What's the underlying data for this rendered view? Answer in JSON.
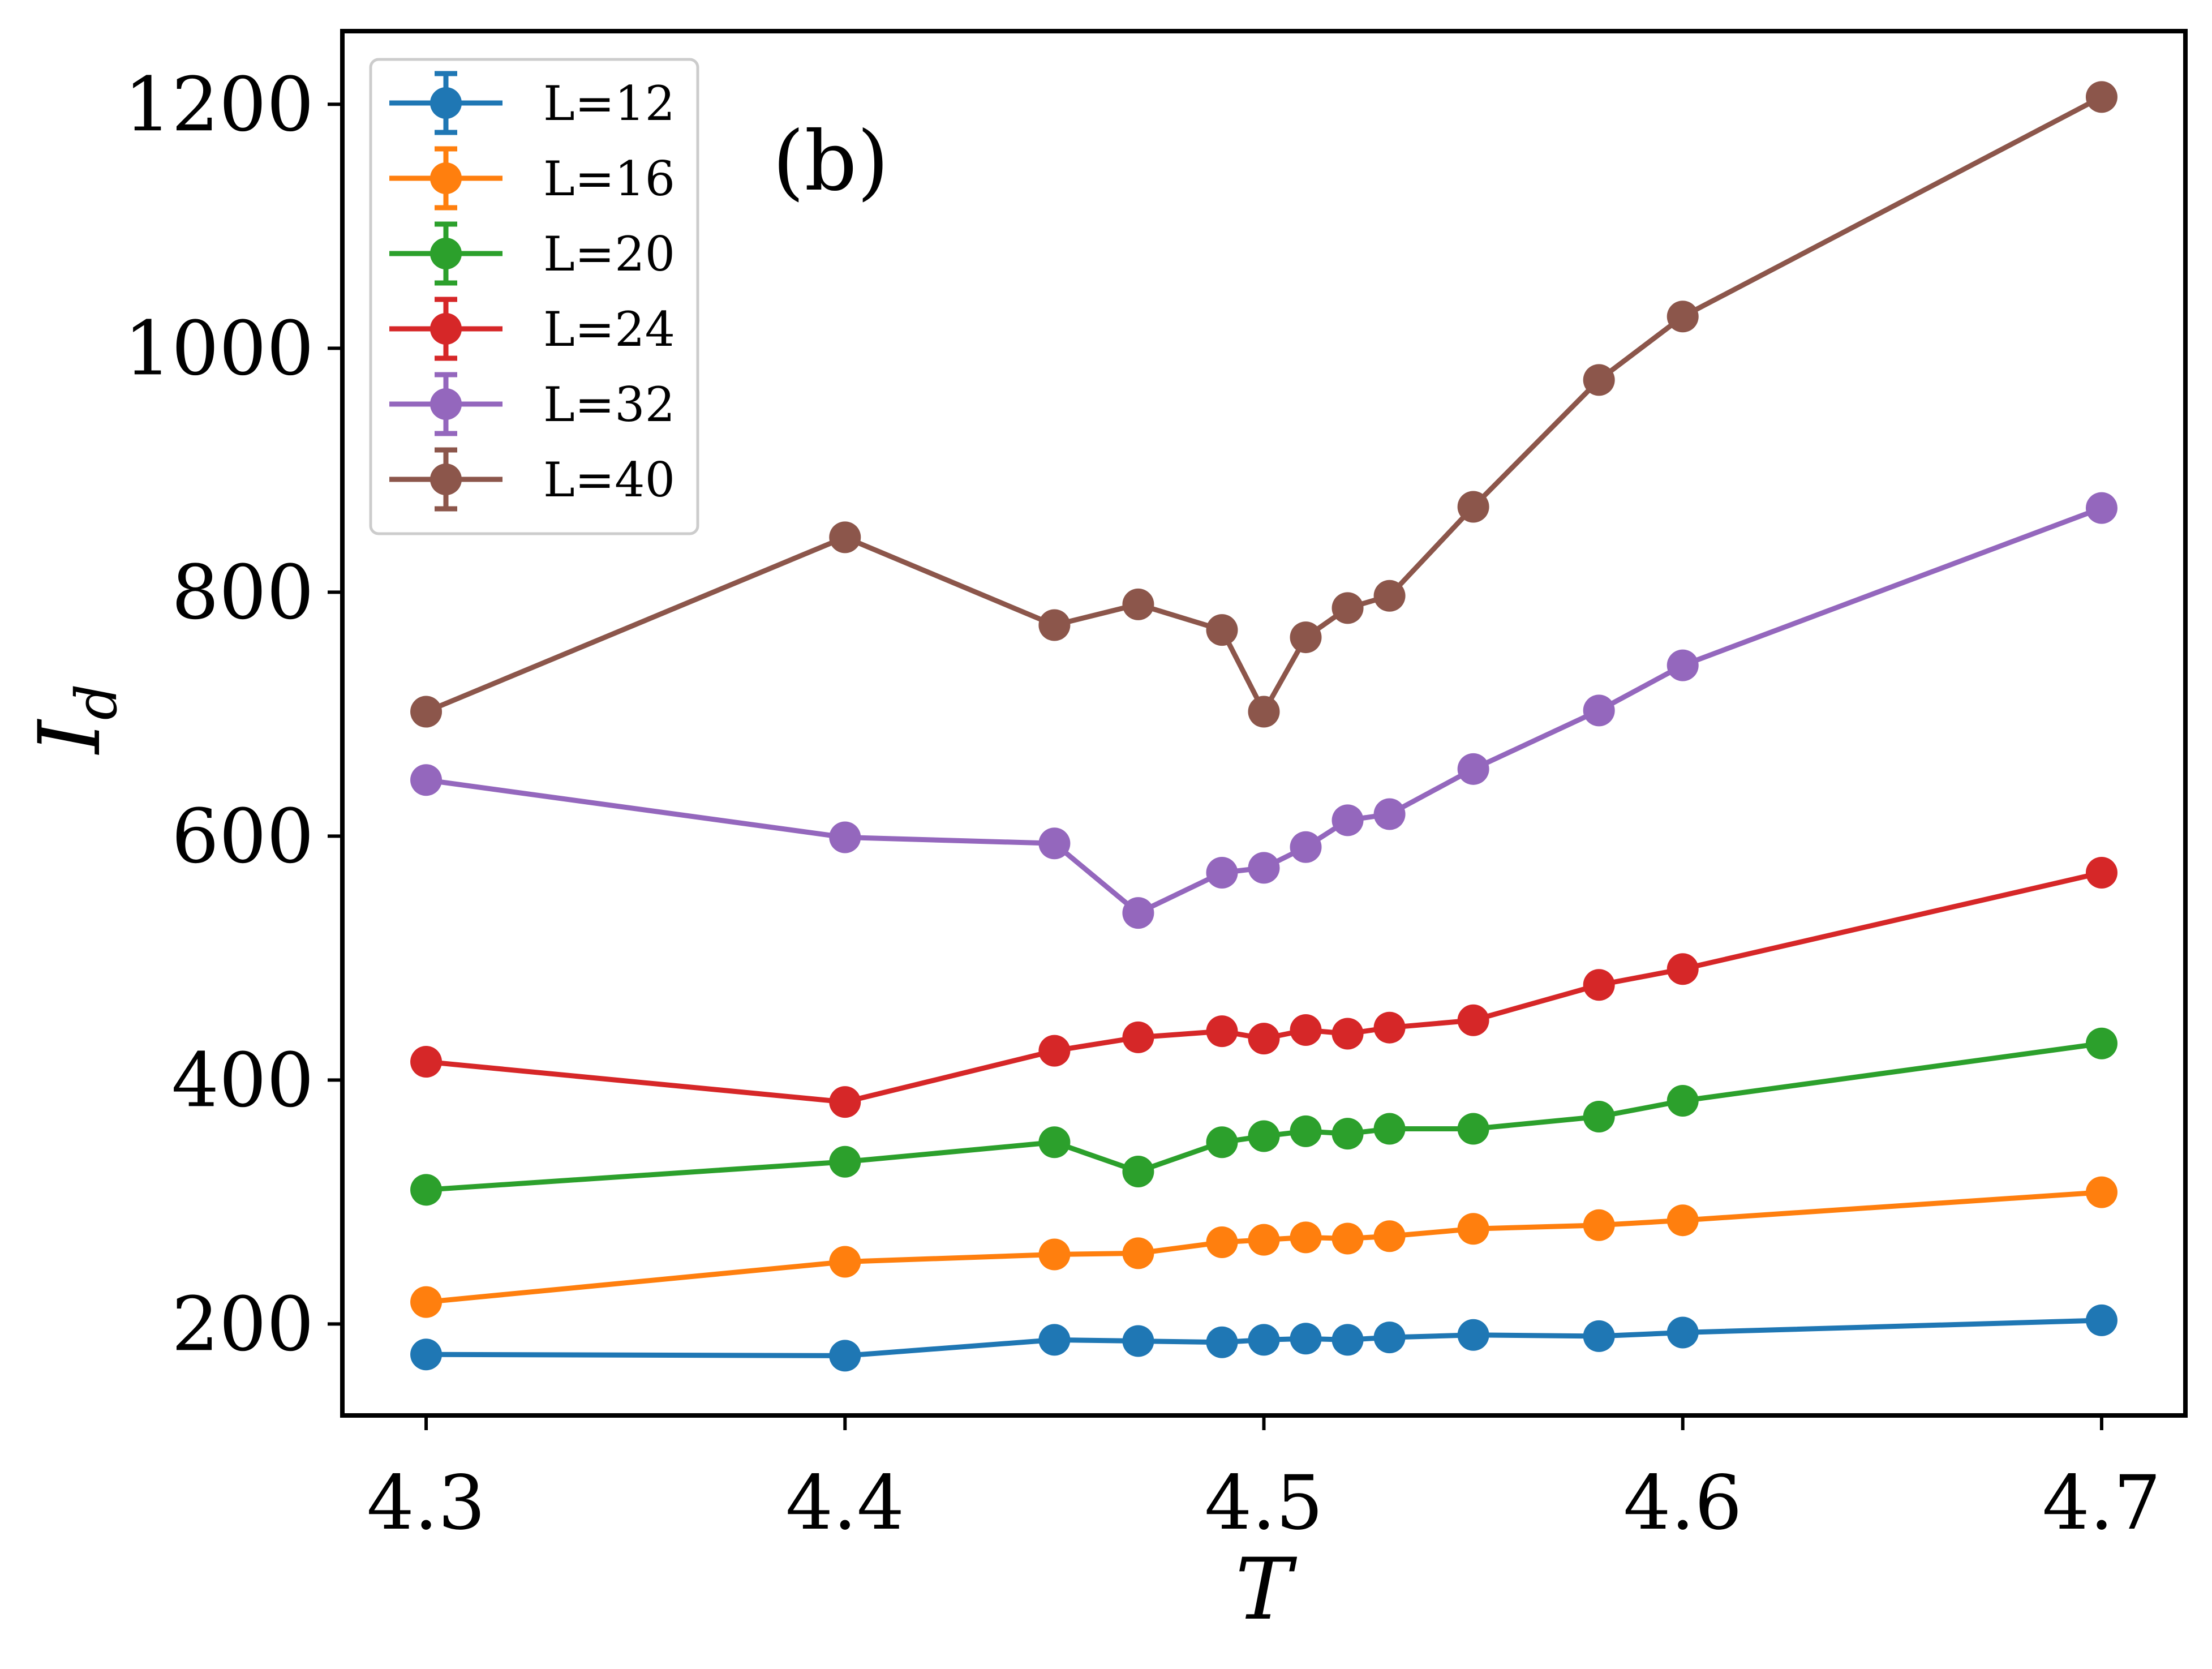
{
  "chart_data": {
    "type": "line",
    "title": "",
    "annotation": "(b)",
    "xlabel": "T",
    "ylabel": {
      "main": "I",
      "sub": "d"
    },
    "xlim": [
      4.28,
      4.72
    ],
    "ylim": [
      125,
      1260
    ],
    "xticks": [
      4.3,
      4.4,
      4.5,
      4.6,
      4.7
    ],
    "xtick_labels": [
      "4.3",
      "4.4",
      "4.5",
      "4.6",
      "4.7"
    ],
    "yticks": [
      200,
      400,
      600,
      800,
      1000,
      1200
    ],
    "ytick_labels": [
      "200",
      "400",
      "600",
      "800",
      "1000",
      "1200"
    ],
    "grid": false,
    "legend_position": "top-left",
    "x": [
      4.3,
      4.4,
      4.45,
      4.47,
      4.49,
      4.5,
      4.51,
      4.52,
      4.53,
      4.55,
      4.58,
      4.6,
      4.7
    ],
    "series": [
      {
        "name": "L=12",
        "color": "#1f77b4",
        "values": [
          175,
          174,
          187,
          186,
          185,
          187,
          188,
          187,
          189,
          191,
          190,
          193,
          203
        ]
      },
      {
        "name": "L=16",
        "color": "#ff7f0e",
        "values": [
          218,
          251,
          257,
          258,
          267,
          269,
          271,
          270,
          272,
          278,
          281,
          285,
          308
        ]
      },
      {
        "name": "L=20",
        "color": "#2ca02c",
        "values": [
          310,
          333,
          349,
          325,
          349,
          354,
          358,
          356,
          360,
          360,
          370,
          383,
          430
        ]
      },
      {
        "name": "L=24",
        "color": "#d62728",
        "values": [
          415,
          382,
          424,
          435,
          440,
          434,
          441,
          438,
          443,
          449,
          478,
          491,
          570
        ]
      },
      {
        "name": "L=32",
        "color": "#9467bd",
        "values": [
          646,
          599,
          594,
          537,
          570,
          574,
          591,
          613,
          618,
          655,
          703,
          740,
          869
        ]
      },
      {
        "name": "L=40",
        "color": "#8c564b",
        "values": [
          702,
          845,
          773,
          790,
          769,
          702,
          763,
          787,
          797,
          870,
          974,
          1026,
          1206
        ]
      }
    ]
  }
}
